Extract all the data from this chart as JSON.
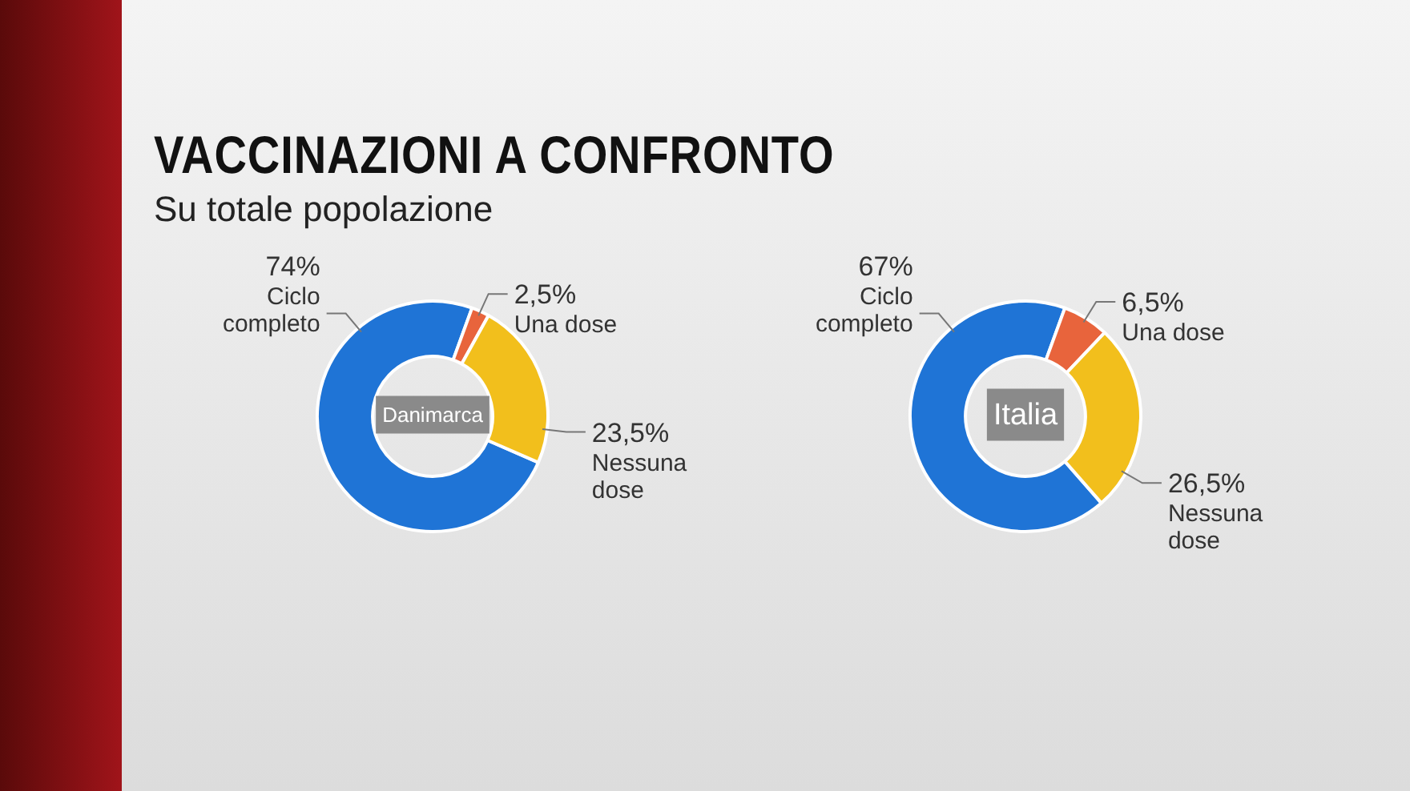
{
  "chart_data": [
    {
      "type": "donut",
      "title": "VACCINAZIONI A CONFRONTO",
      "subtitle": "Su totale popolazione",
      "categories": [
        "Ciclo completo",
        "Una dose",
        "Nessuna dose"
      ],
      "values": [
        74,
        2.5,
        23.5
      ],
      "colors": [
        "#1f74d6",
        "#e8643c",
        "#f2bf1c"
      ],
      "value_labels": [
        "74%",
        "2,5%",
        "23,5%"
      ],
      "annotations": [
        "Danimarca"
      ]
    },
    {
      "type": "donut",
      "categories": [
        "Ciclo completo",
        "Una dose",
        "Nessuna dose"
      ],
      "values": [
        67,
        6.5,
        26.5
      ],
      "colors": [
        "#1f74d6",
        "#e8643c",
        "#f2bf1c"
      ],
      "value_labels": [
        "67%",
        "6,5%",
        "26,5%"
      ],
      "annotations": [
        "Italia"
      ]
    }
  ]
}
